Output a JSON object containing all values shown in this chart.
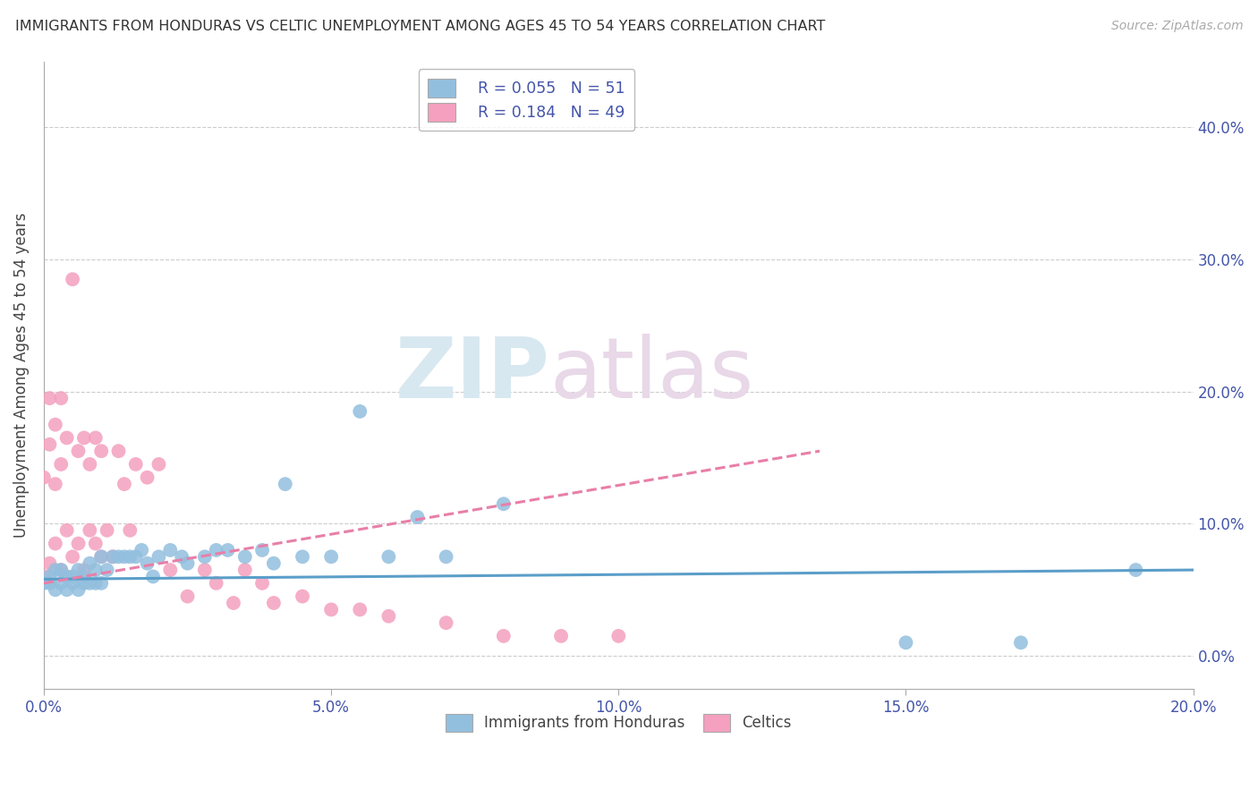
{
  "title": "IMMIGRANTS FROM HONDURAS VS CELTIC UNEMPLOYMENT AMONG AGES 45 TO 54 YEARS CORRELATION CHART",
  "source": "Source: ZipAtlas.com",
  "ylabel": "Unemployment Among Ages 45 to 54 years",
  "xlim": [
    0.0,
    0.2
  ],
  "ylim": [
    -0.025,
    0.45
  ],
  "xticks": [
    0.0,
    0.05,
    0.1,
    0.15,
    0.2
  ],
  "yticks": [
    0.0,
    0.1,
    0.2,
    0.3,
    0.4
  ],
  "xtick_labels": [
    "0.0%",
    "5.0%",
    "10.0%",
    "15.0%",
    "20.0%"
  ],
  "ytick_labels_right": [
    "0.0%",
    "10.0%",
    "20.0%",
    "30.0%",
    "40.0%"
  ],
  "legend_r1": "R = 0.055",
  "legend_n1": "N = 51",
  "legend_r2": "R = 0.184",
  "legend_n2": "N = 49",
  "legend_label1": "Immigrants from Honduras",
  "legend_label2": "Celtics",
  "color_blue": "#92BFDE",
  "color_pink": "#F4A0BE",
  "color_blue_line": "#5B9EC9",
  "color_pink_line": "#E87FA8",
  "watermark_zip": "ZIP",
  "watermark_atlas": "atlas",
  "background_color": "#FFFFFF",
  "blue_scatter_x": [
    0.0,
    0.001,
    0.001,
    0.002,
    0.002,
    0.003,
    0.003,
    0.004,
    0.004,
    0.005,
    0.005,
    0.006,
    0.006,
    0.007,
    0.007,
    0.008,
    0.008,
    0.009,
    0.009,
    0.01,
    0.01,
    0.011,
    0.012,
    0.013,
    0.014,
    0.015,
    0.016,
    0.017,
    0.018,
    0.019,
    0.02,
    0.022,
    0.024,
    0.025,
    0.028,
    0.03,
    0.032,
    0.035,
    0.038,
    0.04,
    0.042,
    0.045,
    0.05,
    0.055,
    0.06,
    0.065,
    0.07,
    0.08,
    0.15,
    0.17,
    0.19
  ],
  "blue_scatter_y": [
    0.055,
    0.055,
    0.06,
    0.05,
    0.065,
    0.055,
    0.065,
    0.06,
    0.05,
    0.06,
    0.055,
    0.065,
    0.05,
    0.06,
    0.055,
    0.07,
    0.055,
    0.065,
    0.055,
    0.075,
    0.055,
    0.065,
    0.075,
    0.075,
    0.075,
    0.075,
    0.075,
    0.08,
    0.07,
    0.06,
    0.075,
    0.08,
    0.075,
    0.07,
    0.075,
    0.08,
    0.08,
    0.075,
    0.08,
    0.07,
    0.13,
    0.075,
    0.075,
    0.185,
    0.075,
    0.105,
    0.075,
    0.115,
    0.01,
    0.01,
    0.065
  ],
  "pink_scatter_x": [
    0.0,
    0.0,
    0.001,
    0.001,
    0.001,
    0.002,
    0.002,
    0.002,
    0.003,
    0.003,
    0.003,
    0.004,
    0.004,
    0.005,
    0.005,
    0.006,
    0.006,
    0.007,
    0.007,
    0.008,
    0.008,
    0.009,
    0.009,
    0.01,
    0.01,
    0.011,
    0.012,
    0.013,
    0.014,
    0.015,
    0.016,
    0.018,
    0.02,
    0.022,
    0.025,
    0.028,
    0.03,
    0.033,
    0.035,
    0.038,
    0.04,
    0.045,
    0.05,
    0.055,
    0.06,
    0.07,
    0.08,
    0.09,
    0.1
  ],
  "pink_scatter_y": [
    0.135,
    0.06,
    0.07,
    0.16,
    0.195,
    0.085,
    0.13,
    0.175,
    0.065,
    0.145,
    0.195,
    0.095,
    0.165,
    0.075,
    0.285,
    0.085,
    0.155,
    0.065,
    0.165,
    0.095,
    0.145,
    0.085,
    0.165,
    0.075,
    0.155,
    0.095,
    0.075,
    0.155,
    0.13,
    0.095,
    0.145,
    0.135,
    0.145,
    0.065,
    0.045,
    0.065,
    0.055,
    0.04,
    0.065,
    0.055,
    0.04,
    0.045,
    0.035,
    0.035,
    0.03,
    0.025,
    0.015,
    0.015,
    0.015
  ],
  "blue_trend_x": [
    0.0,
    0.2
  ],
  "blue_trend_y": [
    0.058,
    0.065
  ],
  "pink_trend_x": [
    0.0,
    0.135
  ],
  "pink_trend_y": [
    0.055,
    0.155
  ]
}
